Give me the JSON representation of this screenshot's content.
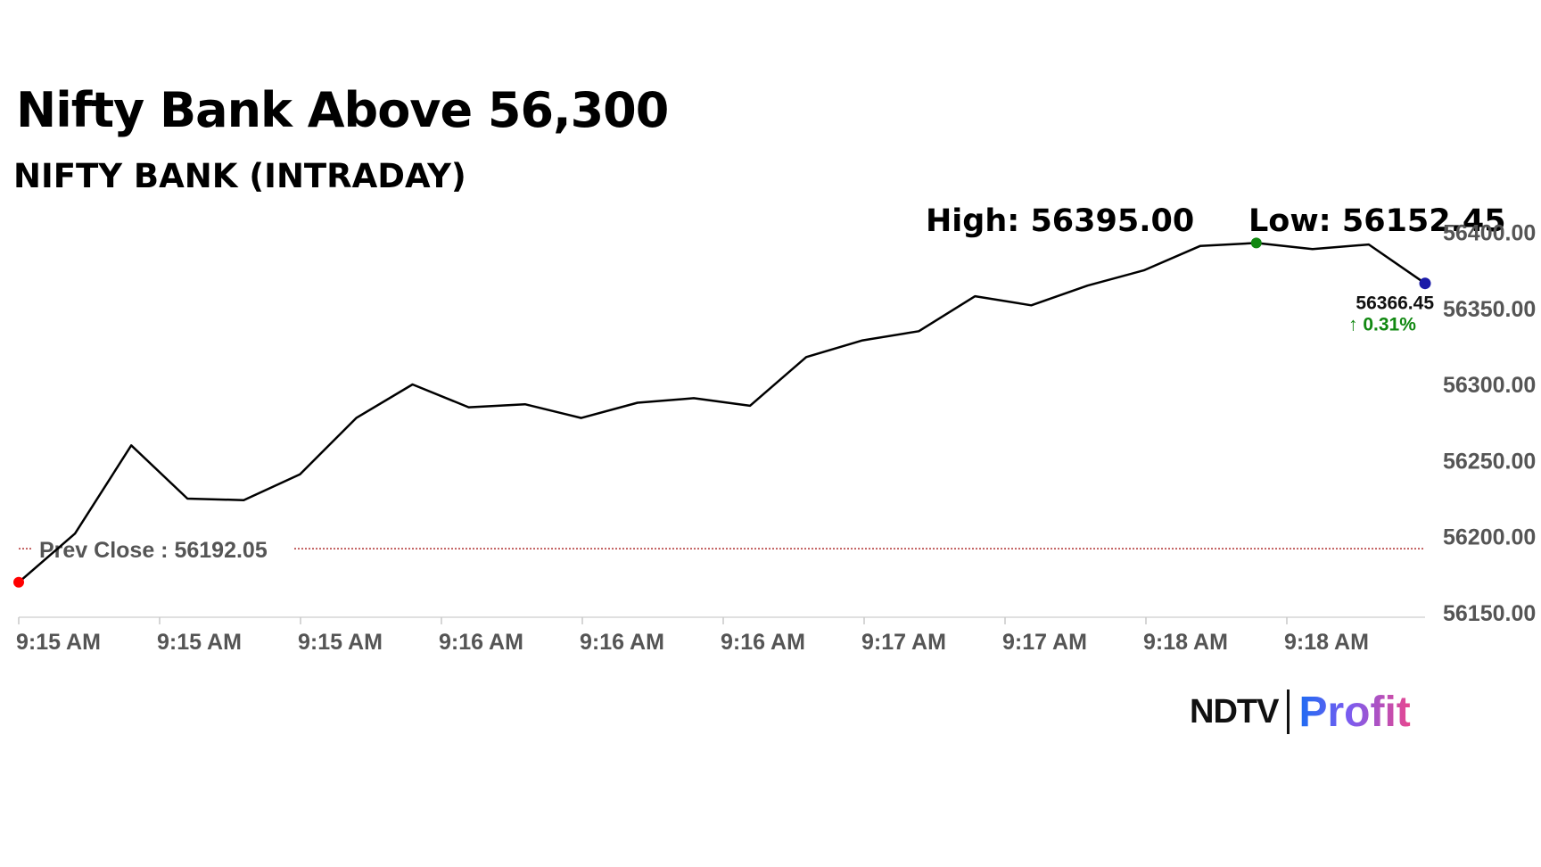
{
  "header": {
    "title": "Nifty Bank Above 56,300",
    "subtitle": "NIFTY BANK (INTRADAY)",
    "high_text": "High: 56395.00",
    "low_text": "Low: 56152.45"
  },
  "brand": {
    "ndtv": "NDTV",
    "profit": "Profit"
  },
  "chart_data": {
    "type": "line",
    "series": [
      {
        "y": [
          56170,
          56202,
          56260,
          56225,
          56224,
          56241,
          56278,
          56300,
          56285,
          56287,
          56278,
          56288,
          56291,
          56286,
          56318,
          56329,
          56335,
          56358,
          56352,
          56365,
          56375,
          56391,
          56393,
          56389,
          56392,
          56366.45
        ]
      }
    ],
    "x_tick_labels": [
      "9:15 AM",
      "9:15 AM",
      "9:15 AM",
      "9:16 AM",
      "9:16 AM",
      "9:16 AM",
      "9:17 AM",
      "9:17 AM",
      "9:18 AM",
      "9:18 AM"
    ],
    "y_tick_labels": [
      "56400.00",
      "56350.00",
      "56300.00",
      "56250.00",
      "56200.00",
      "56150.00"
    ],
    "y_ticks": [
      56400,
      56350,
      56300,
      56250,
      56200,
      56150
    ],
    "ylim": [
      56147,
      56412
    ],
    "prev_close": 56192.05,
    "prev_close_label": "Prev Close : 56192.05",
    "last_value_label": "56366.45",
    "change_label": "↑ 0.31%",
    "markers": {
      "start_index": 0,
      "high_index": 22,
      "last_index": 25
    },
    "colors": {
      "line": "#000000",
      "prev_close": "#b03030",
      "start": "#ff0000",
      "high": "#118811",
      "last": "#1a1aa8",
      "change": "#118811"
    },
    "grid": false,
    "legend": "none"
  }
}
